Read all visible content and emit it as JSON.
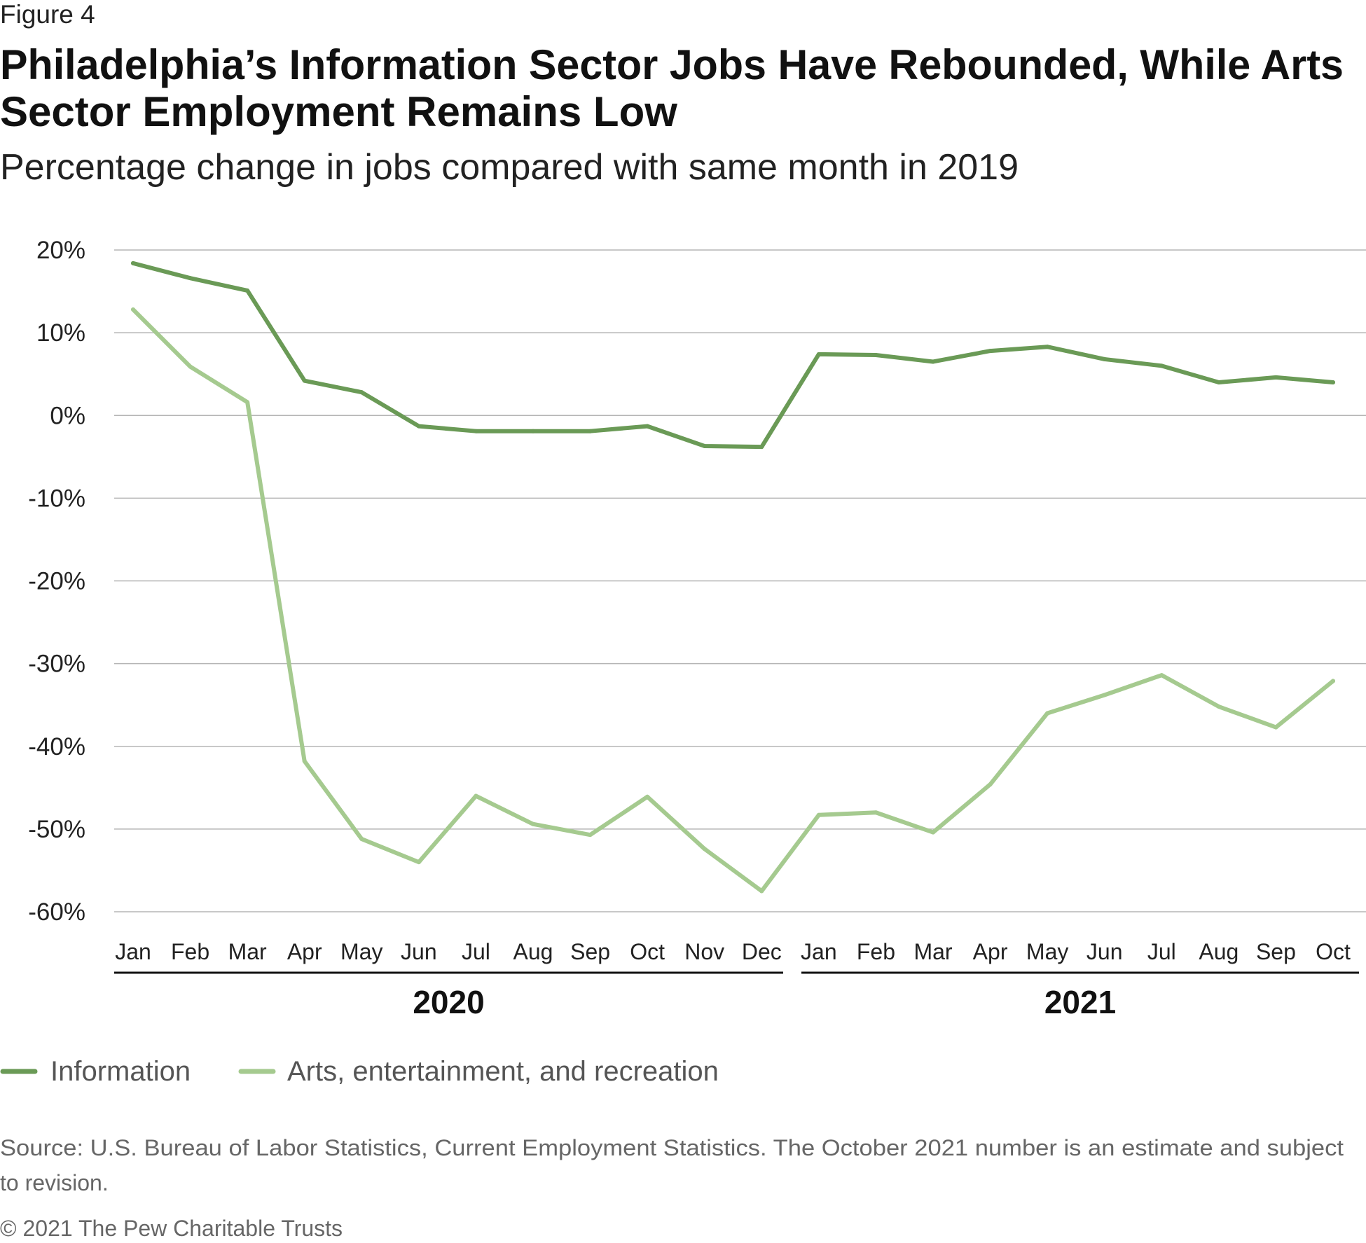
{
  "figure_label": "Figure 4",
  "title_lines": [
    "Philadelphia’s Information Sector Jobs Have Rebounded, While Arts",
    "Sector Employment Remains Low"
  ],
  "subtitle": "Percentage change in jobs compared with same month in 2019",
  "source_lines": [
    "Source: U.S. Bureau of Labor Statistics, Current Employment Statistics. The October 2021 number is an estimate and subject",
    "to revision."
  ],
  "copyright": "© 2021 The Pew Charitable Trusts",
  "chart_data": {
    "type": "line",
    "title": "Philadelphia’s Information Sector Jobs Have Rebounded, While Arts Sector Employment Remains Low",
    "subtitle": "Percentage change in jobs compared with same month in 2019",
    "xlabel": "",
    "ylabel": "",
    "categories": [
      "Jan",
      "Feb",
      "Mar",
      "Apr",
      "May",
      "Jun",
      "Jul",
      "Aug",
      "Sep",
      "Oct",
      "Nov",
      "Dec",
      "Jan",
      "Feb",
      "Mar",
      "Apr",
      "May",
      "Jun",
      "Jul",
      "Aug",
      "Sep",
      "Oct"
    ],
    "year_groups": [
      {
        "label": "2020",
        "start": 0,
        "end": 11
      },
      {
        "label": "2021",
        "start": 12,
        "end": 21
      }
    ],
    "ylim": [
      -60,
      20
    ],
    "yticks": [
      20,
      10,
      0,
      -10,
      -20,
      -30,
      -40,
      -50,
      -60
    ],
    "ytick_labels": [
      "20%",
      "10%",
      "0%",
      "-10%",
      "-20%",
      "-30%",
      "-40%",
      "-50%",
      "-60%"
    ],
    "grid": true,
    "legend_position": "bottom-left",
    "series": [
      {
        "name": "Information",
        "color": "#6a9a56",
        "values": [
          18.4,
          16.6,
          15.1,
          4.2,
          2.8,
          -1.3,
          -1.9,
          -1.9,
          -1.9,
          -1.3,
          -3.7,
          -3.8,
          7.4,
          7.3,
          6.5,
          7.8,
          8.3,
          6.8,
          6.0,
          4.0,
          4.6,
          4.0
        ]
      },
      {
        "name": "Arts, entertainment, and recreation",
        "color": "#a5ca8f",
        "values": [
          12.8,
          5.9,
          1.6,
          -41.8,
          -51.2,
          -54.0,
          -46.0,
          -49.4,
          -50.7,
          -46.1,
          -52.4,
          -57.5,
          -48.3,
          -48.0,
          -50.4,
          -44.6,
          -36.0,
          -33.8,
          -31.4,
          -35.2,
          -37.7,
          -32.1
        ]
      }
    ]
  }
}
